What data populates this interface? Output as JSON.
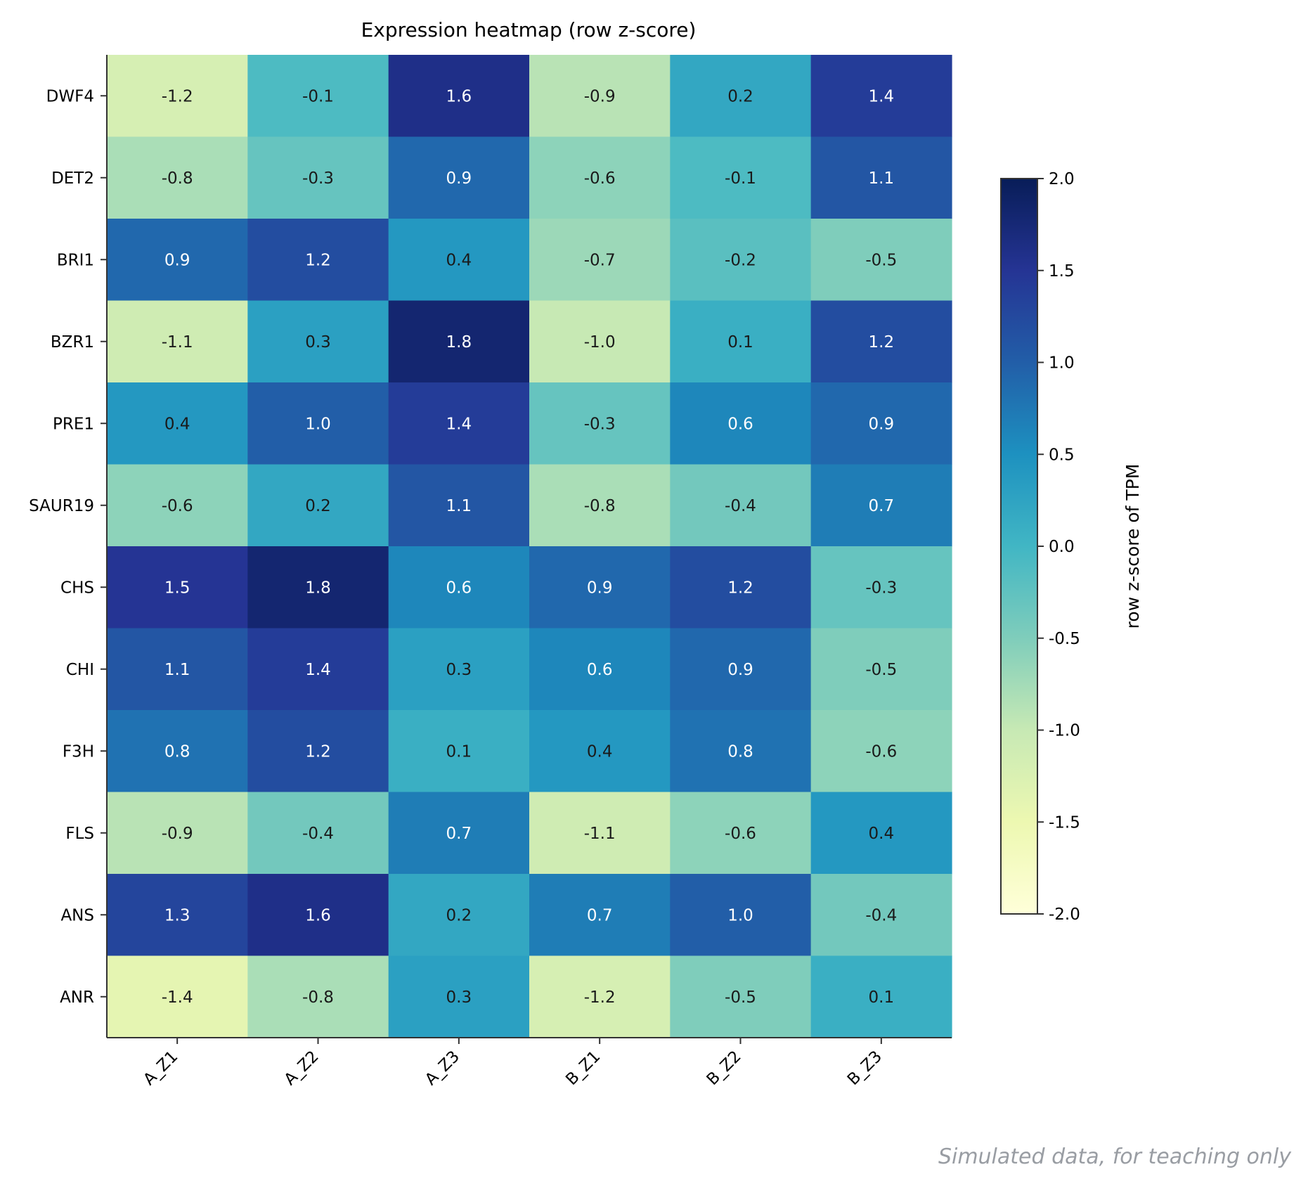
{
  "chart_data": {
    "type": "heatmap",
    "title": "Expression heatmap (row z-score)",
    "rows": [
      "DWF4",
      "DET2",
      "BRI1",
      "BZR1",
      "PRE1",
      "SAUR19",
      "CHS",
      "CHI",
      "F3H",
      "FLS",
      "ANS",
      "ANR"
    ],
    "columns": [
      "A_Z1",
      "A_Z2",
      "A_Z3",
      "B_Z1",
      "B_Z2",
      "B_Z3"
    ],
    "values": [
      [
        -1.2,
        -0.1,
        1.6,
        -0.9,
        0.2,
        1.4
      ],
      [
        -0.8,
        -0.3,
        0.9,
        -0.6,
        -0.1,
        1.1
      ],
      [
        0.9,
        1.2,
        0.4,
        -0.7,
        -0.2,
        -0.5
      ],
      [
        -1.1,
        0.3,
        1.8,
        -1.0,
        0.1,
        1.2
      ],
      [
        0.4,
        1.0,
        1.4,
        -0.3,
        0.6,
        0.9
      ],
      [
        -0.6,
        0.2,
        1.1,
        -0.8,
        -0.4,
        0.7
      ],
      [
        1.5,
        1.8,
        0.6,
        0.9,
        1.2,
        -0.3
      ],
      [
        1.1,
        1.4,
        0.3,
        0.6,
        0.9,
        -0.5
      ],
      [
        0.8,
        1.2,
        0.1,
        0.4,
        0.8,
        -0.6
      ],
      [
        -0.9,
        -0.4,
        0.7,
        -1.1,
        -0.6,
        0.4
      ],
      [
        1.3,
        1.6,
        0.2,
        0.7,
        1.0,
        -0.4
      ],
      [
        -1.4,
        -0.8,
        0.3,
        -1.2,
        -0.5,
        0.1
      ]
    ],
    "value_labels": [
      [
        "-1.2",
        "-0.1",
        "1.6",
        "-0.9",
        "0.2",
        "1.4"
      ],
      [
        "-0.8",
        "-0.3",
        "0.9",
        "-0.6",
        "-0.1",
        "1.1"
      ],
      [
        "0.9",
        "1.2",
        "0.4",
        "-0.7",
        "-0.2",
        "-0.5"
      ],
      [
        "-1.1",
        "0.3",
        "1.8",
        "-1.0",
        "0.1",
        "1.2"
      ],
      [
        "0.4",
        "1.0",
        "1.4",
        "-0.3",
        "0.6",
        "0.9"
      ],
      [
        "-0.6",
        "0.2",
        "1.1",
        "-0.8",
        "-0.4",
        "0.7"
      ],
      [
        "1.5",
        "1.8",
        "0.6",
        "0.9",
        "1.2",
        "-0.3"
      ],
      [
        "1.1",
        "1.4",
        "0.3",
        "0.6",
        "0.9",
        "-0.5"
      ],
      [
        "0.8",
        "1.2",
        "0.1",
        "0.4",
        "0.8",
        "-0.6"
      ],
      [
        "-0.9",
        "-0.4",
        "0.7",
        "-1.1",
        "-0.6",
        "0.4"
      ],
      [
        "1.3",
        "1.6",
        "0.2",
        "0.7",
        "1.0",
        "-0.4"
      ],
      [
        "-1.4",
        "-0.8",
        "0.3",
        "-1.2",
        "-0.5",
        "0.1"
      ]
    ],
    "colorscale": "YlGnBu",
    "colorbar": {
      "label": "row z-score of TPM",
      "range": [
        -2.0,
        2.0
      ],
      "ticks": [
        2.0,
        1.5,
        1.0,
        0.5,
        0.0,
        -0.5,
        -1.0,
        -1.5,
        -2.0
      ],
      "tick_labels": [
        "2.0",
        "1.5",
        "1.0",
        "0.5",
        "0.0",
        "-0.5",
        "-1.0",
        "-1.5",
        "-2.0"
      ]
    },
    "colors": {
      "axis": "#333333",
      "text_dark": "#1a1a1a",
      "text_light": "#ffffff",
      "watermark": "#999da3"
    }
  },
  "footer": {
    "note": "Simulated data, for teaching only"
  }
}
